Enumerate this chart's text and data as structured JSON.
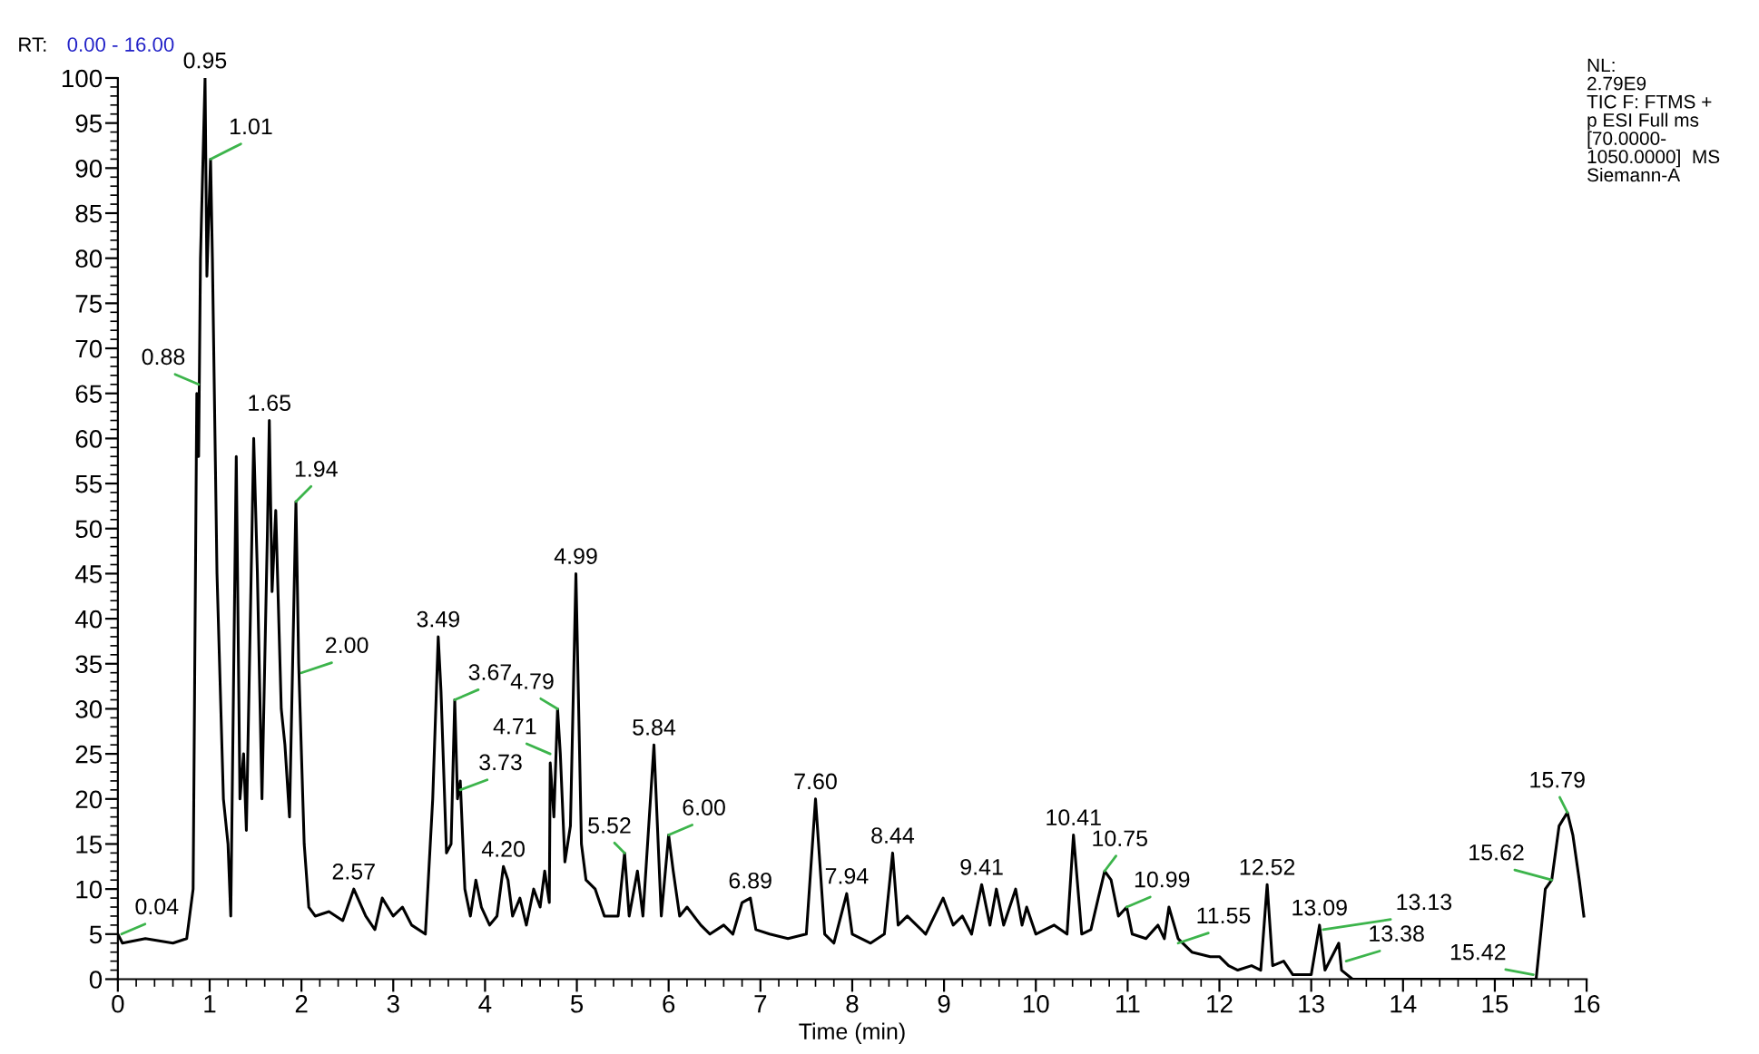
{
  "chart_data": {
    "type": "line",
    "xlabel": "Time (min)",
    "x": [
      0,
      0.05,
      0.3,
      0.6,
      0.75,
      0.82,
      0.86,
      0.88,
      0.9,
      0.95,
      0.97,
      1.01,
      1.03,
      1.08,
      1.15,
      1.2,
      1.23,
      1.29,
      1.33,
      1.37,
      1.4,
      1.48,
      1.52,
      1.57,
      1.63,
      1.65,
      1.68,
      1.72,
      1.78,
      1.82,
      1.87,
      1.94,
      1.97,
      2.03,
      2.08,
      2.15,
      2.3,
      2.45,
      2.57,
      2.7,
      2.8,
      2.88,
      3.0,
      3.1,
      3.2,
      3.35,
      3.43,
      3.49,
      3.52,
      3.58,
      3.63,
      3.67,
      3.7,
      3.73,
      3.78,
      3.84,
      3.9,
      3.96,
      4.05,
      4.13,
      4.2,
      4.25,
      4.3,
      4.38,
      4.45,
      4.53,
      4.6,
      4.65,
      4.7,
      4.71,
      4.75,
      4.79,
      4.82,
      4.87,
      4.93,
      4.99,
      5.05,
      5.1,
      5.2,
      5.3,
      5.45,
      5.52,
      5.57,
      5.66,
      5.72,
      5.84,
      5.92,
      6.0,
      6.05,
      6.12,
      6.2,
      6.35,
      6.45,
      6.6,
      6.7,
      6.8,
      6.89,
      6.95,
      7.1,
      7.3,
      7.5,
      7.6,
      7.7,
      7.8,
      7.94,
      8.0,
      8.2,
      8.35,
      8.44,
      8.5,
      8.6,
      8.8,
      8.99,
      9.1,
      9.2,
      9.3,
      9.41,
      9.5,
      9.57,
      9.65,
      9.78,
      9.85,
      9.9,
      10.0,
      10.2,
      10.34,
      10.41,
      10.5,
      10.6,
      10.68,
      10.75,
      10.82,
      10.9,
      10.99,
      11.05,
      11.2,
      11.33,
      11.4,
      11.45,
      11.55,
      11.7,
      11.9,
      12.0,
      12.1,
      12.2,
      12.35,
      12.45,
      12.52,
      12.58,
      12.7,
      12.8,
      13.0,
      13.09,
      13.15,
      13.25,
      13.3,
      13.33,
      13.45,
      15.45,
      15.55,
      15.62,
      15.7,
      15.79,
      15.85,
      15.92,
      15.97
    ],
    "series": [
      {
        "color": "#000000",
        "values": [
          5,
          4,
          4.5,
          4,
          4.5,
          10,
          65,
          58,
          80,
          100,
          78,
          91,
          80,
          45,
          20,
          15,
          7,
          58,
          20,
          25,
          16.5,
          60,
          45,
          20,
          50,
          62,
          43,
          52,
          30,
          26,
          18,
          53,
          35,
          15,
          8,
          7,
          7.5,
          6.5,
          10,
          7,
          5.5,
          9,
          7,
          8,
          6,
          5,
          20,
          38,
          32,
          14,
          15,
          31,
          20,
          22,
          10,
          7,
          11,
          8,
          6,
          7,
          12.5,
          11,
          7,
          9,
          6,
          10,
          8,
          12,
          8.5,
          24,
          18,
          30,
          25,
          13,
          17,
          45,
          15,
          11,
          10,
          7,
          7,
          14,
          7,
          12,
          7,
          26,
          7,
          16,
          12,
          7,
          8,
          6,
          5,
          6,
          5,
          8.5,
          9,
          5.5,
          5,
          4.5,
          5,
          20,
          5,
          4,
          9.5,
          5,
          4,
          5,
          14,
          6,
          7,
          5,
          9,
          6,
          7,
          5,
          10.5,
          6,
          10,
          6,
          10,
          6,
          8,
          5,
          6,
          5,
          16,
          5,
          5.5,
          9,
          12,
          11,
          7,
          8,
          5,
          4.5,
          6,
          4.5,
          8,
          4.5,
          3,
          2.5,
          2.5,
          1.5,
          1,
          1.5,
          1,
          10.5,
          1.5,
          2,
          0.5,
          0.5,
          6,
          1,
          3,
          4,
          1,
          0,
          0,
          10,
          11,
          17,
          18.5,
          16,
          11,
          7
        ]
      }
    ],
    "xlim": [
      0,
      16
    ],
    "xticks": [
      0,
      1,
      2,
      3,
      4,
      5,
      6,
      7,
      8,
      9,
      10,
      11,
      12,
      13,
      14,
      15,
      16
    ],
    "ylim": [
      0,
      100
    ],
    "yticks": [
      0,
      5,
      10,
      15,
      20,
      25,
      30,
      35,
      40,
      45,
      50,
      55,
      60,
      65,
      70,
      75,
      80,
      85,
      90,
      95,
      100
    ],
    "grid": false,
    "marker": "none",
    "line_style": "solid",
    "annotations": [
      "RT:",
      "0.00 - 16.00",
      "NL:\n2.79E9\nTIC F: FTMS +\np ESI Full ms\n[70.0000-\n1050.0000]  MS\nSiemann-A",
      {
        "text": "0.04",
        "x": 0.04,
        "y": 5
      },
      {
        "text": "0.88",
        "x": 0.88,
        "y": 66
      },
      {
        "text": "0.95",
        "x": 0.95,
        "y": 100
      },
      {
        "text": "1.01",
        "x": 1.01,
        "y": 91
      },
      {
        "text": "1.65",
        "x": 1.65,
        "y": 62
      },
      {
        "text": "1.94",
        "x": 1.94,
        "y": 53
      },
      {
        "text": "2.00",
        "x": 2.0,
        "y": 34
      },
      {
        "text": "2.57",
        "x": 2.57,
        "y": 10
      },
      {
        "text": "3.49",
        "x": 3.49,
        "y": 38
      },
      {
        "text": "3.67",
        "x": 3.67,
        "y": 31
      },
      {
        "text": "3.73",
        "x": 3.73,
        "y": 21
      },
      {
        "text": "4.20",
        "x": 4.2,
        "y": 12.5
      },
      {
        "text": "4.71",
        "x": 4.71,
        "y": 25
      },
      {
        "text": "4.79",
        "x": 4.79,
        "y": 30
      },
      {
        "text": "4.99",
        "x": 4.99,
        "y": 45
      },
      {
        "text": "5.52",
        "x": 5.52,
        "y": 14
      },
      {
        "text": "5.84",
        "x": 5.84,
        "y": 26
      },
      {
        "text": "6.00",
        "x": 6.0,
        "y": 16
      },
      {
        "text": "6.89",
        "x": 6.89,
        "y": 9
      },
      {
        "text": "7.60",
        "x": 7.6,
        "y": 20
      },
      {
        "text": "7.94",
        "x": 7.94,
        "y": 9.5
      },
      {
        "text": "8.44",
        "x": 8.44,
        "y": 14
      },
      {
        "text": "9.41",
        "x": 9.41,
        "y": 10.5
      },
      {
        "text": "10.41",
        "x": 10.41,
        "y": 16
      },
      {
        "text": "10.75",
        "x": 10.75,
        "y": 12
      },
      {
        "text": "10.99",
        "x": 10.99,
        "y": 8
      },
      {
        "text": "11.55",
        "x": 11.55,
        "y": 4
      },
      {
        "text": "12.52",
        "x": 12.52,
        "y": 10.5
      },
      {
        "text": "13.09",
        "x": 13.09,
        "y": 6
      },
      {
        "text": "13.13",
        "x": 13.13,
        "y": 5.5
      },
      {
        "text": "13.38",
        "x": 13.38,
        "y": 2
      },
      {
        "text": "15.42",
        "x": 15.42,
        "y": 0.5
      },
      {
        "text": "15.62",
        "x": 15.62,
        "y": 11
      },
      {
        "text": "15.79",
        "x": 15.79,
        "y": 18.5
      }
    ]
  }
}
